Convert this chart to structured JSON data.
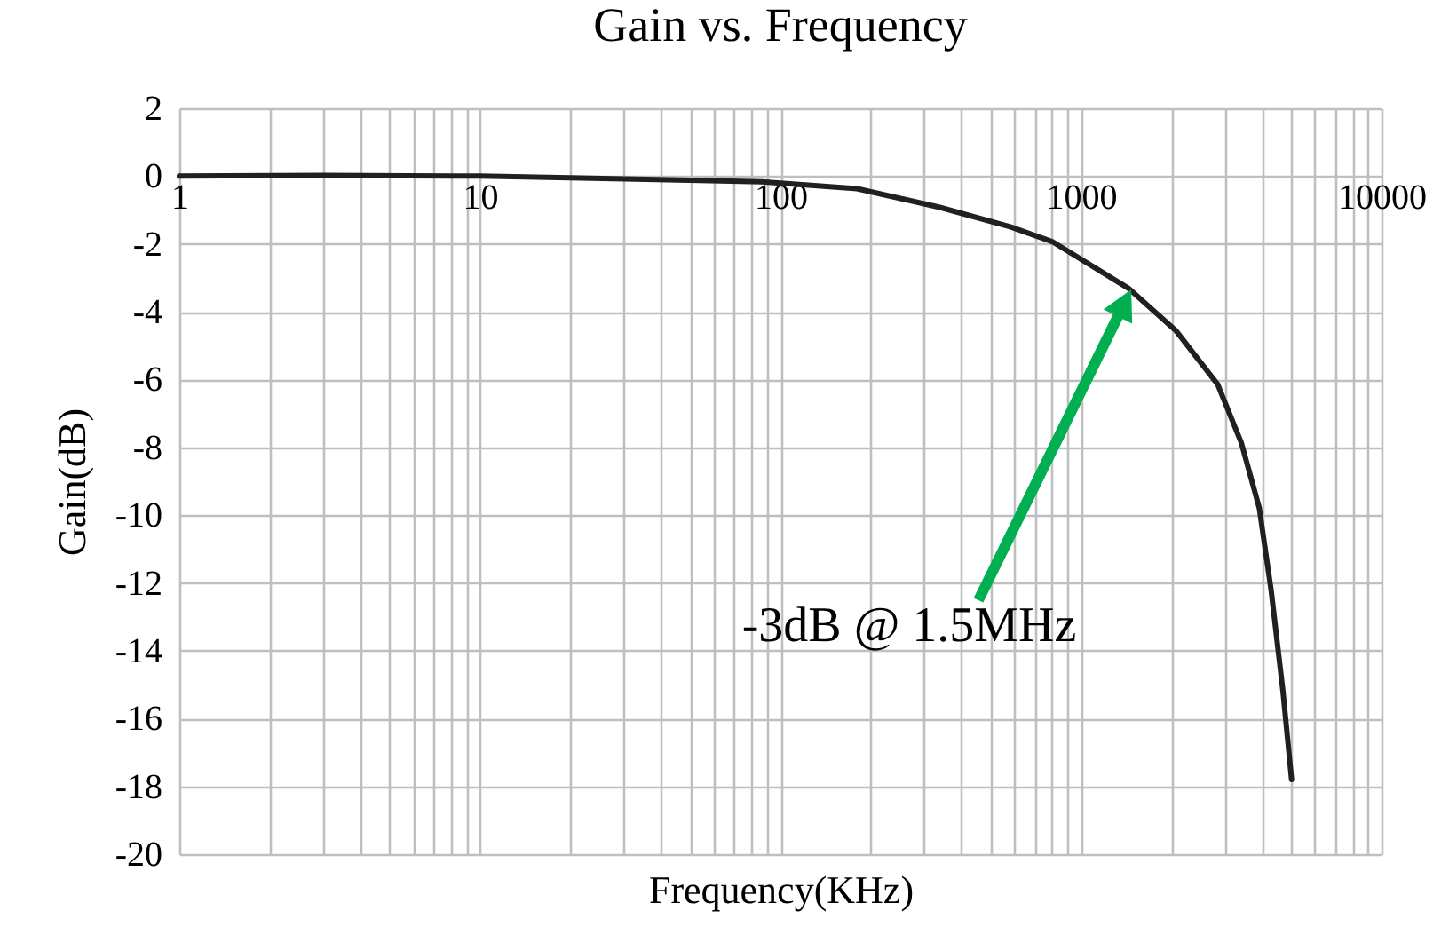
{
  "chart_data": {
    "type": "line",
    "title": "Gain vs. Frequency",
    "xlabel": "Frequency(KHz)",
    "ylabel": "Gain(dB)",
    "log": "x",
    "grid": true,
    "marker": "none",
    "line_style": "solid",
    "x": [
      1,
      3,
      10,
      20,
      50,
      87,
      180,
      339,
      585,
      802,
      1445,
      2075,
      2850,
      3420,
      3920,
      4290,
      4700,
      5020
    ],
    "series": [
      {
        "color": "#231f20",
        "values": [
          0,
          0.02,
          0,
          -0.05,
          -0.12,
          -0.17,
          -0.37,
          -0.92,
          -1.5,
          -1.93,
          -3.32,
          -4.57,
          -6.14,
          -7.88,
          -9.79,
          -12.2,
          -15.2,
          -17.8
        ]
      }
    ],
    "xlim": [
      1,
      10000
    ],
    "ylim": [
      -20,
      2
    ],
    "xticks": [
      1,
      {
        "value": 2,
        "label": null
      },
      {
        "value": 3,
        "label": null
      },
      {
        "value": 4,
        "label": null
      },
      {
        "value": 5,
        "label": null
      },
      {
        "value": 6,
        "label": null
      },
      {
        "value": 7,
        "label": null
      },
      {
        "value": 8,
        "label": null
      },
      {
        "value": 9,
        "label": null
      },
      10,
      {
        "value": 20,
        "label": null
      },
      {
        "value": 30,
        "label": null
      },
      {
        "value": 40,
        "label": null
      },
      {
        "value": 50,
        "label": null
      },
      {
        "value": 60,
        "label": null
      },
      {
        "value": 70,
        "label": null
      },
      {
        "value": 80,
        "label": null
      },
      {
        "value": 90,
        "label": null
      },
      100,
      {
        "value": 200,
        "label": null
      },
      {
        "value": 300,
        "label": null
      },
      {
        "value": 400,
        "label": null
      },
      {
        "value": 500,
        "label": null
      },
      {
        "value": 600,
        "label": null
      },
      {
        "value": 700,
        "label": null
      },
      {
        "value": 800,
        "label": null
      },
      {
        "value": 900,
        "label": null
      },
      1000,
      {
        "value": 2000,
        "label": null
      },
      {
        "value": 3000,
        "label": null
      },
      {
        "value": 4000,
        "label": null
      },
      {
        "value": 5000,
        "label": null
      },
      {
        "value": 6000,
        "label": null
      },
      {
        "value": 7000,
        "label": null
      },
      {
        "value": 8000,
        "label": null
      },
      {
        "value": 9000,
        "label": null
      },
      10000
    ],
    "yticks": [
      -20,
      -18,
      -16,
      -14,
      -12,
      -10,
      -8,
      -6,
      -4,
      -2,
      0,
      2
    ],
    "annotations": [
      "-3dB @ 1.5MHz"
    ]
  }
}
